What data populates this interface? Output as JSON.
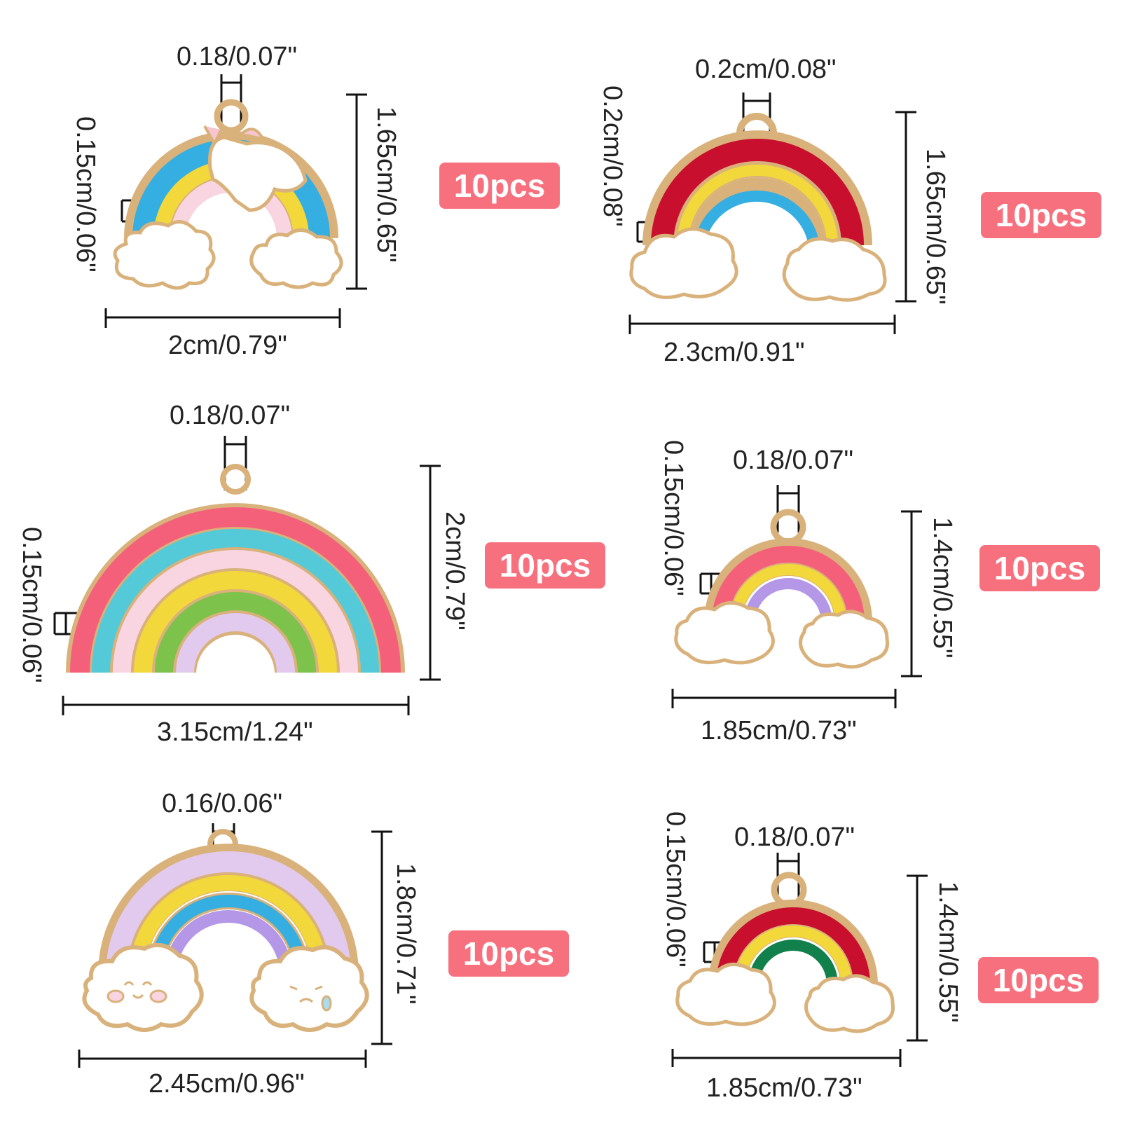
{
  "colors": {
    "badge": "#f7707e",
    "gold": "#d9b17a",
    "cloud": "#ffffff",
    "blue": "#35aee2",
    "yellow": "#f2d83b",
    "light_pink": "#f8d5e0",
    "red": "#c8102e",
    "pink": "#f4607a",
    "teal": "#54cad8",
    "green": "#7dc24a",
    "lavender": "#e2c9ee",
    "purple": "#b497e6",
    "dark_green": "#11804a"
  },
  "pendants": [
    {
      "name": "Unicorn rainbow pendant",
      "loop_width": "0.18/0.07\"",
      "border_width": "0.15cm/0.06\"",
      "height": "1.65cm/0.65\"",
      "width": "2cm/0.79\"",
      "quantity": "10pcs"
    },
    {
      "name": "Red rainbow pendant",
      "loop_width": "0.2cm/0.08\"",
      "border_width": "0.2cm/0.08\"",
      "height": "1.65cm/0.65\"",
      "width": "2.3cm/0.91\"",
      "quantity": "10pcs"
    },
    {
      "name": "Large pastel rainbow pendant",
      "loop_width": "0.18/0.07\"",
      "border_width": "0.15cm/0.06\"",
      "height": "2cm/0.79\"",
      "width": "3.15cm/1.24\"",
      "quantity": "10pcs"
    },
    {
      "name": "Pink rainbow pendant",
      "loop_width": "0.18/0.07\"",
      "border_width": "0.15cm/0.06\"",
      "height": "1.4cm/0.55\"",
      "width": "1.85cm/0.73\"",
      "quantity": "10pcs"
    },
    {
      "name": "Cloud face rainbow pendant",
      "loop_width": "0.16/0.06\"",
      "height": "1.8cm/0.71\"",
      "width": "2.45cm/0.96\"",
      "quantity": "10pcs"
    },
    {
      "name": "Red green rainbow pendant",
      "loop_width": "0.18/0.07\"",
      "border_width": "0.15cm/0.06\"",
      "height": "1.4cm/0.55\"",
      "width": "1.85cm/0.73\"",
      "quantity": "10pcs"
    }
  ]
}
